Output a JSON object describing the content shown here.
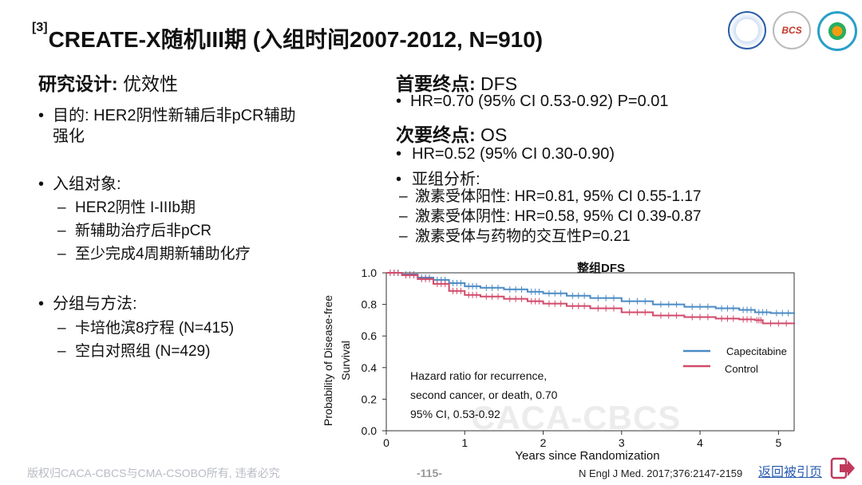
{
  "slide": {
    "title_sup": "[3]",
    "title_main": "CREATE-X随机III期 (入组时间2007-2012, N=910)",
    "logos": [
      "logo-1",
      "logo-bcs",
      "logo-3"
    ],
    "logo_bcs_text": "BCS"
  },
  "left": {
    "design_label": "研究设计:",
    "design_value": " 优效性",
    "purpose_line1": "目的: HER2阴性新辅后非pCR辅助",
    "purpose_line2": "强化",
    "subjects_label": "入组对象:",
    "subjects": [
      "HER2阴性 I-IIIb期",
      "新辅助治疗后非pCR",
      "至少完成4周期新辅助化疗"
    ],
    "groups_label": "分组与方法:",
    "groups": [
      "卡培他滨8疗程 (N=415)",
      "空白对照组 (N=429)"
    ]
  },
  "right": {
    "primary_label": "首要终点:",
    "primary_value": " DFS",
    "primary_result": "HR=0.70 (95% CI 0.53-0.92) P=0.01",
    "secondary_label": "次要终点:",
    "secondary_value": " OS",
    "secondary_result": "HR=0.52 (95% CI 0.30-0.90)",
    "subgroup_label": "亚组分析:",
    "subgroups": [
      "激素受体阳性: HR=0.81, 95% CI 0.55-1.17",
      "激素受体阴性: HR=0.58, 95% CI 0.39-0.87",
      "激素受体与药物的交互性P=0.21"
    ]
  },
  "chart_data": {
    "type": "line",
    "title": "整组DFS",
    "xlabel": "Years since Randomization",
    "ylabel_line1": "Probability of Disease-free",
    "ylabel_line2": "Survival",
    "xlim": [
      0,
      5.2
    ],
    "ylim": [
      0,
      1.0
    ],
    "xticks": [
      "0",
      "1",
      "2",
      "3",
      "4",
      "5"
    ],
    "yticks": [
      "0.0",
      "0.2",
      "0.4",
      "0.6",
      "0.8",
      "1.0"
    ],
    "legend_position": "right",
    "annotation_lines": [
      "Hazard ratio for recurrence,",
      "second cancer, or death, 0.70",
      "95% CI, 0.53-0.92"
    ],
    "series": [
      {
        "name": "Capecitabine",
        "color": "#4a8ac4",
        "x": [
          0,
          0.2,
          0.4,
          0.6,
          0.8,
          1.0,
          1.2,
          1.5,
          1.8,
          2.0,
          2.3,
          2.6,
          3.0,
          3.4,
          3.8,
          4.2,
          4.5,
          4.7,
          4.9,
          5.2
        ],
        "y": [
          1.0,
          0.99,
          0.97,
          0.955,
          0.935,
          0.915,
          0.905,
          0.895,
          0.88,
          0.87,
          0.855,
          0.84,
          0.82,
          0.8,
          0.785,
          0.775,
          0.765,
          0.75,
          0.745,
          0.74
        ]
      },
      {
        "name": "Control",
        "color": "#d04a6a",
        "x": [
          0,
          0.2,
          0.4,
          0.6,
          0.8,
          1.0,
          1.2,
          1.5,
          1.8,
          2.0,
          2.3,
          2.6,
          3.0,
          3.4,
          3.8,
          4.2,
          4.5,
          4.7,
          4.8,
          5.2
        ],
        "y": [
          1.0,
          0.985,
          0.96,
          0.93,
          0.885,
          0.86,
          0.85,
          0.835,
          0.82,
          0.805,
          0.79,
          0.775,
          0.75,
          0.73,
          0.72,
          0.71,
          0.705,
          0.7,
          0.68,
          0.675
        ]
      }
    ]
  },
  "watermark": "CACA-CBCS",
  "footer": {
    "copyright": "版权归CACA-CBCS与CMA-CSOBO所有, 违者必究",
    "page": "-115-",
    "citation": "N Engl J Med. 2017;376:2147-2159",
    "back_label": "返回被引页"
  }
}
